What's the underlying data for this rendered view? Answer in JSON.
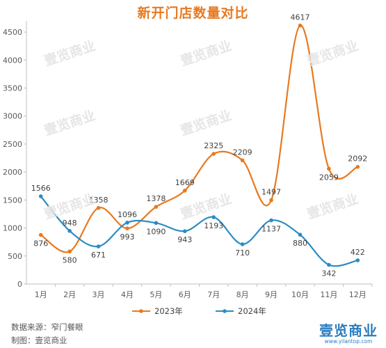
{
  "title": "新开门店数量对比",
  "chart_data": {
    "type": "line",
    "categories": [
      "1月",
      "2月",
      "3月",
      "4月",
      "5月",
      "6月",
      "7月",
      "8月",
      "9月",
      "10月",
      "11月",
      "12月"
    ],
    "series": [
      {
        "name": "2023年",
        "color": "#e8791f",
        "values": [
          876,
          580,
          1358,
          993,
          1378,
          1669,
          2325,
          2209,
          1497,
          4617,
          2059,
          2092
        ]
      },
      {
        "name": "2024年",
        "color": "#2a8cc4",
        "values": [
          1566,
          948,
          671,
          1096,
          1090,
          943,
          1193,
          710,
          1137,
          880,
          342,
          422
        ]
      }
    ],
    "ylim": [
      0,
      4700
    ],
    "yticks": [
      0,
      500,
      1000,
      1500,
      2000,
      2500,
      3000,
      3500,
      4000,
      4500
    ],
    "grid": false,
    "legend": "bottom",
    "smooth": true
  },
  "footer": {
    "source": "数据来源：窄门餐眼",
    "credit": "制图：壹览商业"
  },
  "brand": {
    "logo": "壹览商业",
    "url": "www.yilantop.com",
    "watermark": "壹览商业"
  }
}
